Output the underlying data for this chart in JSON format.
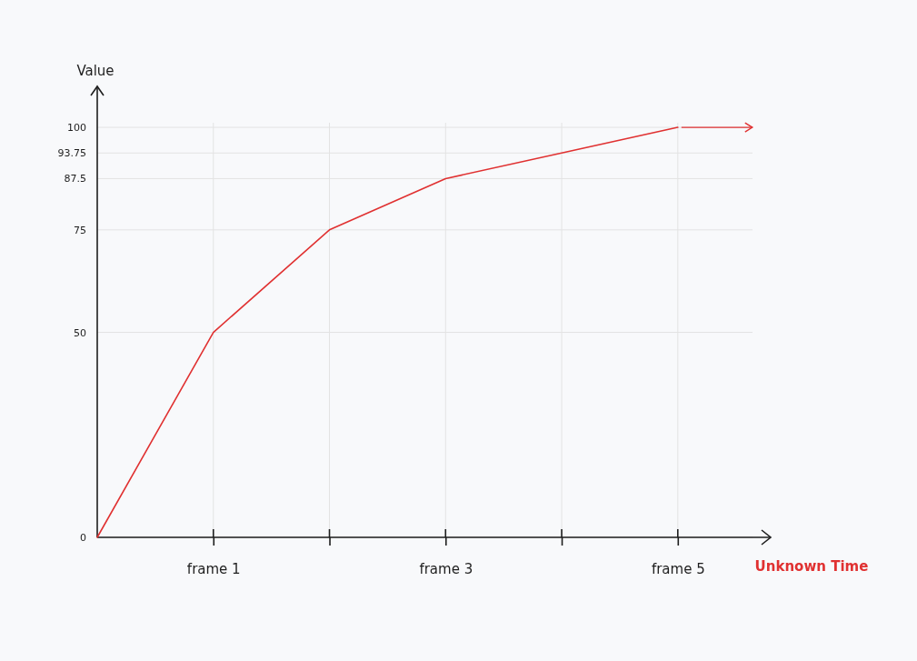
{
  "chart_data": {
    "type": "line",
    "xlabel": "Unknown Time",
    "ylabel": "Value",
    "categories": [
      null,
      "frame 1",
      null,
      "frame 3",
      null,
      "frame 5"
    ],
    "series": [
      {
        "color": "#e03131",
        "values": [
          0,
          50,
          75,
          87.5,
          93.75,
          100
        ]
      }
    ],
    "ylim": [
      0,
      110
    ],
    "yticks": [
      0,
      50,
      75,
      87.5,
      93.75,
      100
    ],
    "grid": true,
    "marker": "none",
    "line_style": "solid"
  }
}
